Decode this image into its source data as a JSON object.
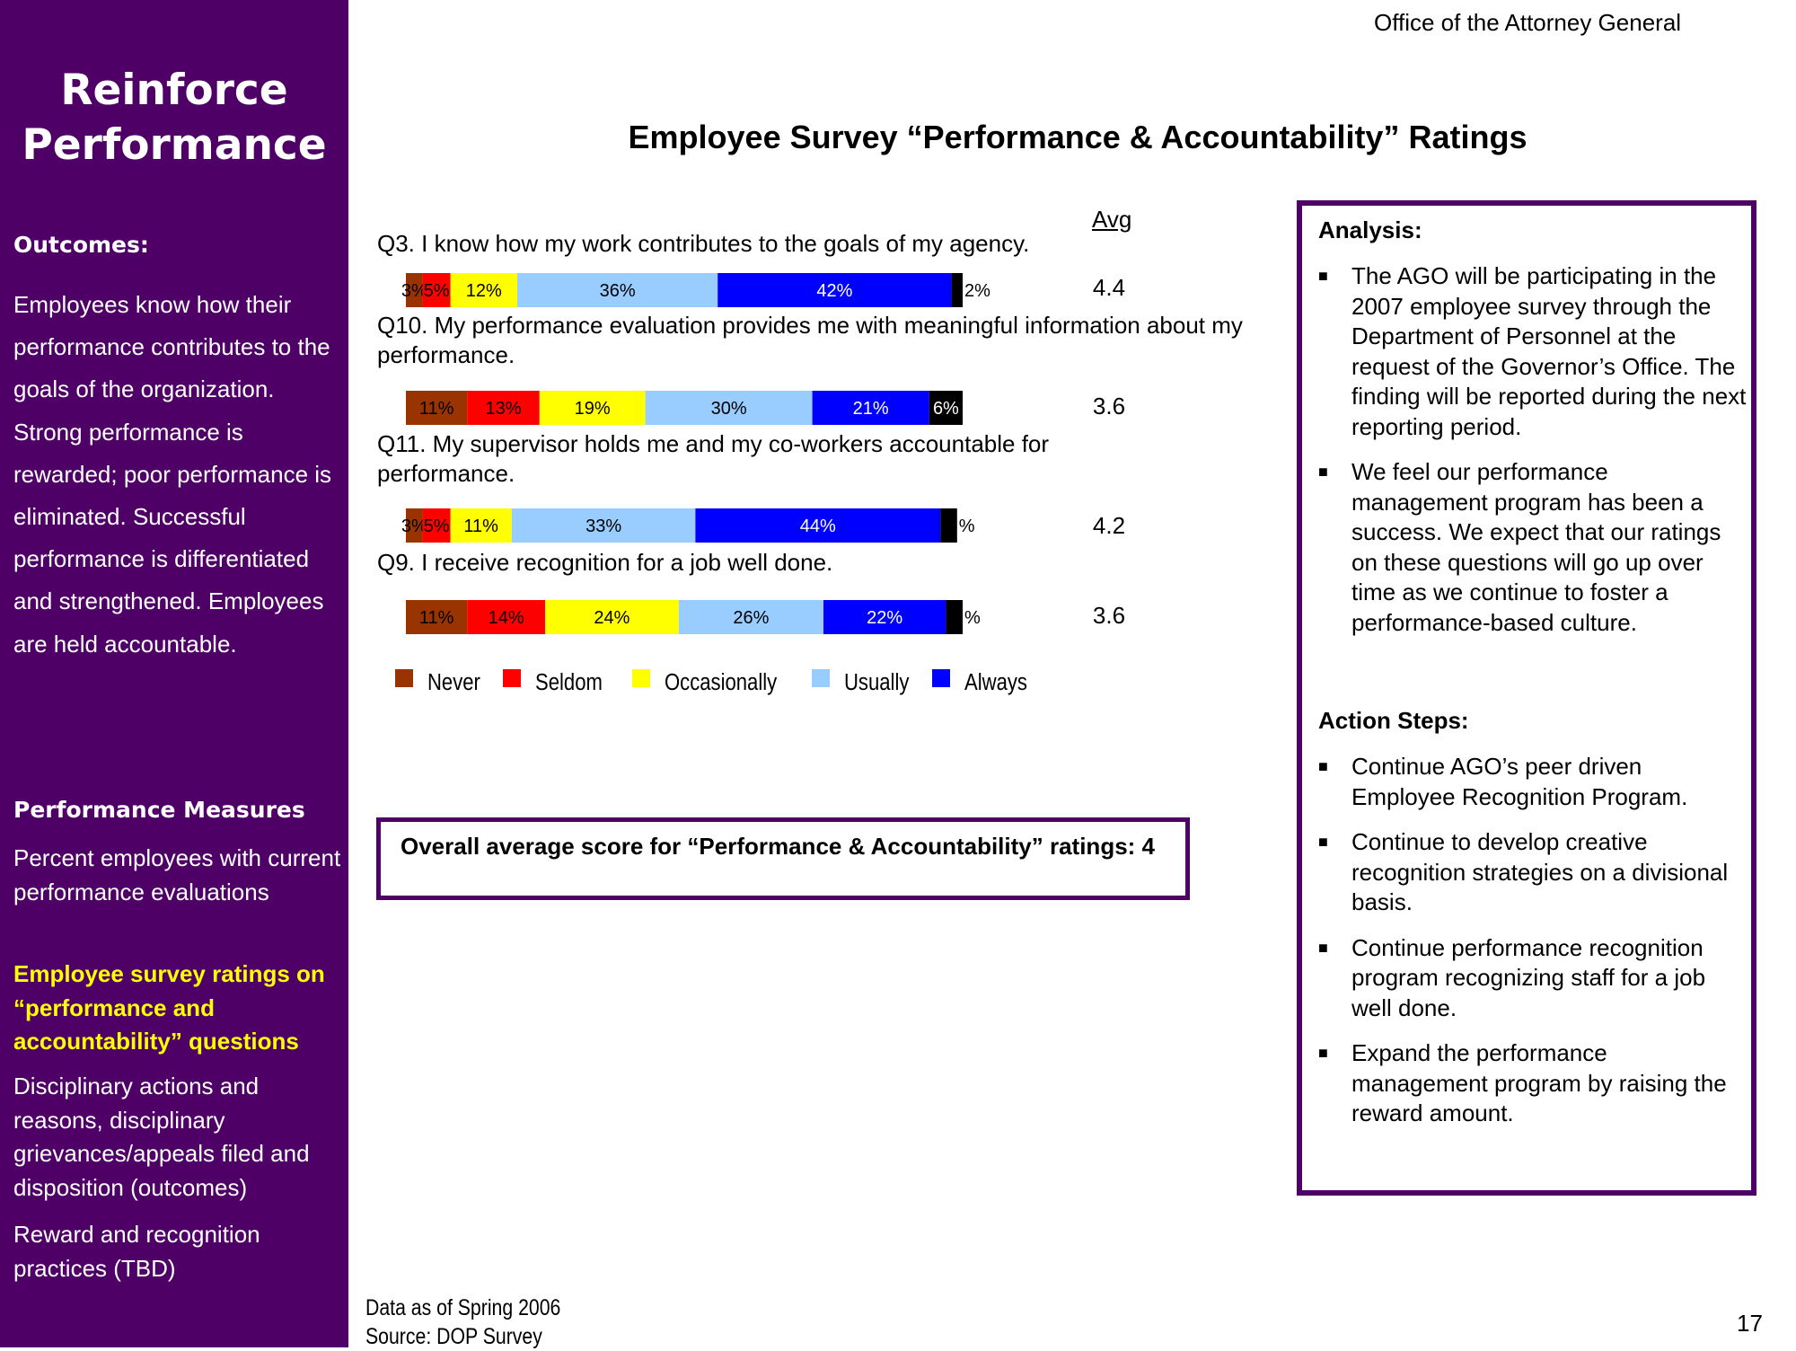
{
  "header": {
    "office": "Office of the Attorney General",
    "page_number": "17"
  },
  "sidebar": {
    "title_line1": "Reinforce",
    "title_line2": "Performance",
    "outcomes_heading": "Outcomes:",
    "outcomes_text": "Employees know how their performance contributes to the goals of the organization.  Strong performance is rewarded; poor performance is eliminated. Successful performance is differentiated and strengthened. Employees are held accountable.",
    "measures_heading": "Performance Measures",
    "measures": [
      {
        "text": "Percent employees with current performance evaluations"
      },
      {
        "text": "Employee survey ratings on “performance and accountability” questions"
      },
      {
        "text": "Disciplinary actions and reasons, disciplinary grievances/appeals filed and disposition (outcomes)"
      },
      {
        "text": "Reward and recognition practices (TBD)"
      }
    ]
  },
  "chart_data": {
    "type": "bar",
    "stacked": true,
    "orientation": "horizontal",
    "title": "Employee Survey “Performance & Accountability” Ratings",
    "avg_header": "Avg",
    "categories": [
      "Q3. I know how my work contributes to the goals of my agency.",
      "Q10. My performance evaluation provides me with meaningful information about my performance.",
      "Q11. My supervisor holds me and my co-workers accountable for performance.",
      "Q9. I receive recognition for a job well done."
    ],
    "series": [
      {
        "name": "Never",
        "color": "#993300",
        "values": [
          3,
          11,
          3,
          11
        ],
        "labels": [
          "3%",
          "11%",
          "3%",
          "11%"
        ]
      },
      {
        "name": "Seldom",
        "color": "#ff0000",
        "values": [
          5,
          13,
          5,
          14
        ],
        "labels": [
          "5%",
          "13%",
          "5%",
          "14%"
        ]
      },
      {
        "name": "Occasionally",
        "color": "#ffff00",
        "values": [
          12,
          19,
          11,
          24
        ],
        "labels": [
          "12%",
          "19%",
          "11%",
          "24%"
        ]
      },
      {
        "name": "Usually",
        "color": "#99ccff",
        "values": [
          36,
          30,
          33,
          26
        ],
        "labels": [
          "36%",
          "30%",
          "33%",
          "26%"
        ]
      },
      {
        "name": "Always",
        "color": "#0000ff",
        "values": [
          42,
          21,
          44,
          22
        ],
        "labels": [
          "42%",
          "21%",
          "44%",
          "22%"
        ]
      },
      {
        "name": "",
        "color": "#000000",
        "values": [
          2,
          6,
          3,
          3
        ],
        "labels": [
          "2%",
          "6%",
          "%",
          "%"
        ]
      }
    ],
    "legend_series": [
      "Never",
      "Seldom",
      "Occasionally",
      "Usually",
      "Always"
    ],
    "averages": [
      "4.4",
      "3.6",
      "4.2",
      "3.6"
    ],
    "legend_position": "bottom"
  },
  "overall": {
    "text": "Overall average score for “Performance & Accountability” ratings:  4"
  },
  "analysis": {
    "heading": "Analysis:",
    "items": [
      "The AGO will be participating in the 2007 employee survey through the Department of Personnel at the request of the Governor’s Office.  The finding will be reported during the next reporting period.",
      "We feel our performance management program has been a success.  We expect that our ratings on these questions will go up over time as we continue to foster a performance-based culture."
    ],
    "action_heading": "Action Steps:",
    "actions": [
      "Continue AGO’s peer driven Employee Recognition Program.",
      "Continue to develop creative recognition strategies on a divisional basis.",
      "Continue performance recognition program recognizing staff for a job well done.",
      "Expand the performance management program by raising the reward amount."
    ]
  },
  "footer": {
    "data_as_of": "Data as of Spring 2006",
    "source": "Source:  DOP Survey"
  }
}
